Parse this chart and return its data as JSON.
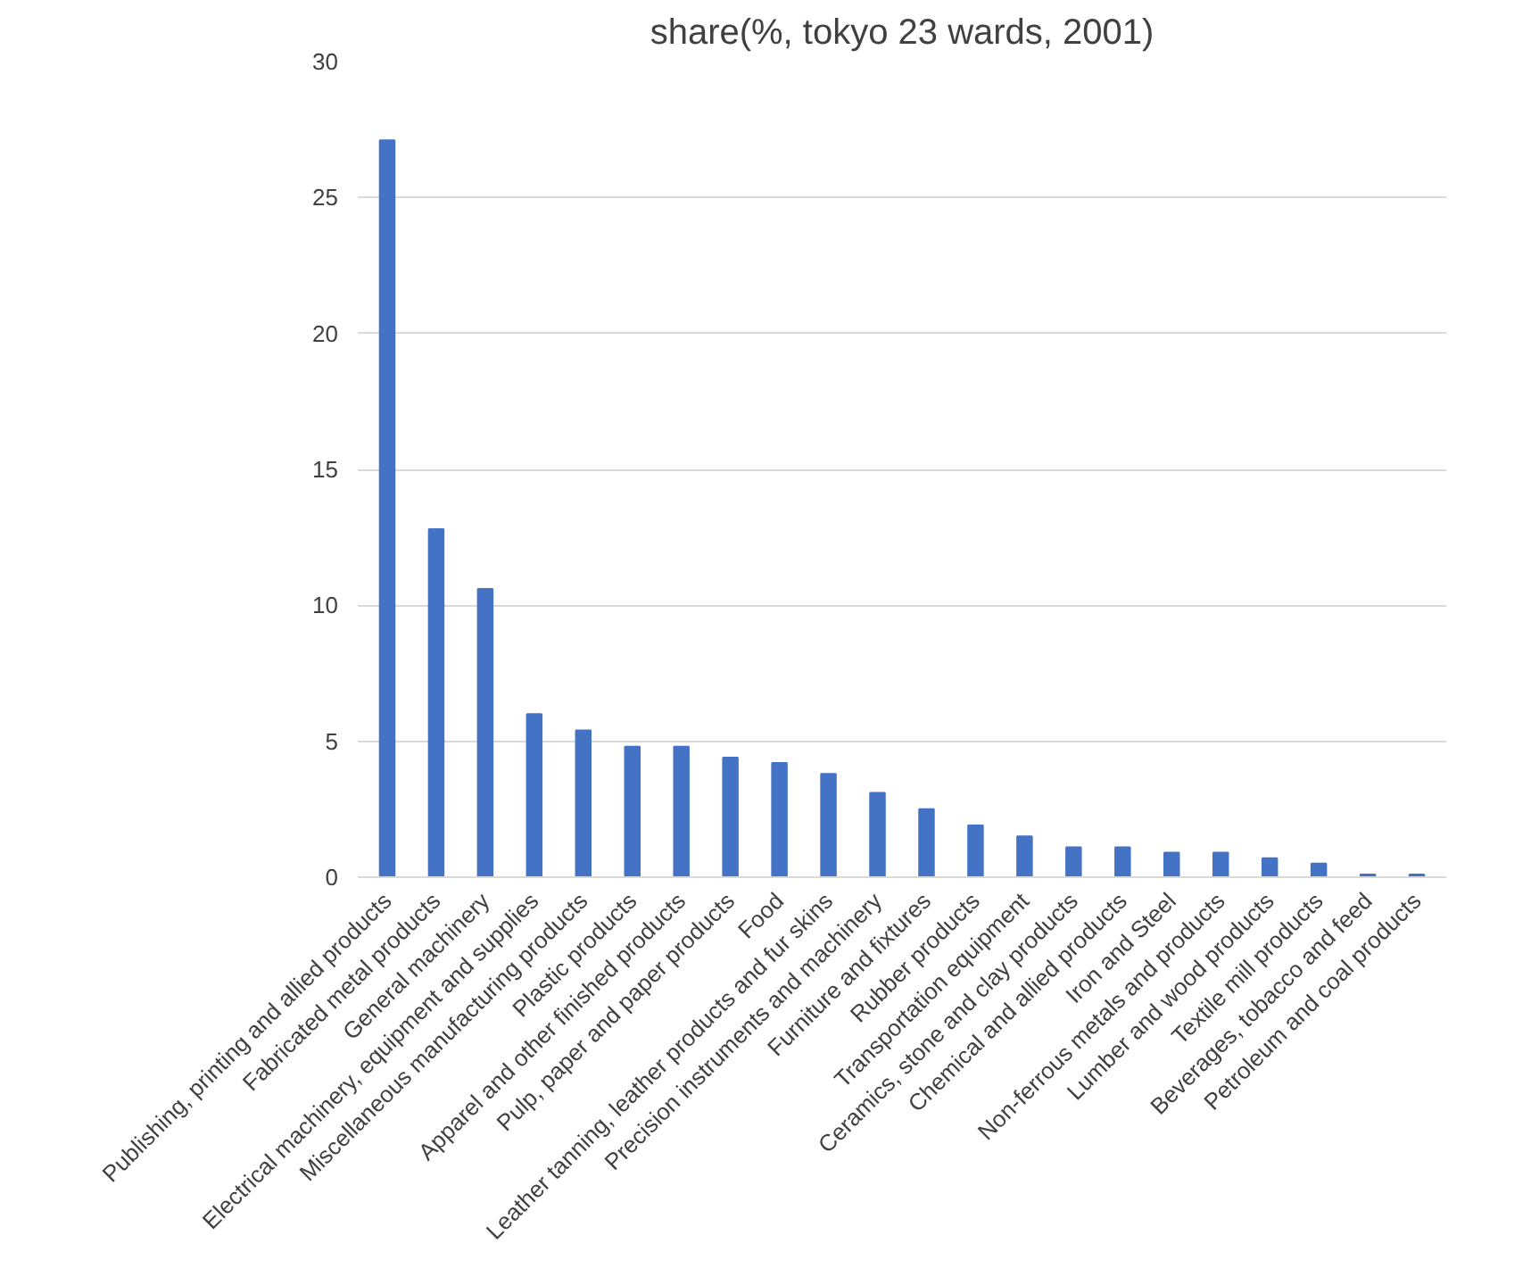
{
  "chart_data": {
    "type": "bar",
    "title": "share(%, tokyo 23 wards, 2001)",
    "categories": [
      "Publishing, printing and allied products",
      "Fabricated metal products",
      "General machinery",
      "Electrical machinery, equipment and supplies",
      "Miscellaneous manufacturing products",
      "Plastic products",
      "Apparel and other finished products",
      "Pulp, paper and paper products",
      "Food",
      "Leather tanning, leather products and fur skins",
      "Precision instruments and machinery",
      "Furniture and fixtures",
      "Rubber products",
      "Transportation equipment",
      "Ceramics, stone and clay products",
      "Chemical and allied products",
      "Iron and Steel",
      "Non-ferrous metals and products",
      "Lumber and wood products",
      "Textile mill products",
      "Beverages, tobacco and feed",
      "Petroleum and coal products"
    ],
    "values": [
      27.1,
      12.8,
      10.6,
      6.0,
      5.4,
      4.8,
      4.8,
      4.4,
      4.2,
      3.8,
      3.1,
      2.5,
      1.9,
      1.5,
      1.1,
      1.1,
      0.9,
      0.9,
      0.7,
      0.5,
      0.1,
      0.1
    ],
    "color": "#4472c4",
    "ylim": [
      0,
      30
    ],
    "yticks": [
      0,
      5,
      10,
      15,
      20,
      25,
      30
    ],
    "grid": "y"
  }
}
